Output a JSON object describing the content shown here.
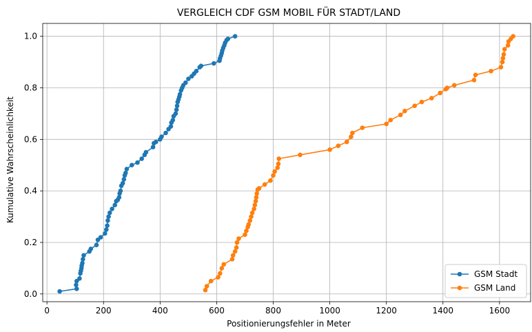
{
  "chart_data": {
    "type": "line",
    "title": "VERGLEICH CDF GSM MOBIL FÜR STADT/LAND",
    "xlabel": "Positionierungsfehler in Meter",
    "ylabel": "Kumulative Wahrscheinlichkeit",
    "xlim": [
      -15,
      1710
    ],
    "ylim": [
      -0.03,
      1.05
    ],
    "xticks": [
      0,
      200,
      400,
      600,
      800,
      1000,
      1200,
      1400,
      1600
    ],
    "yticks": [
      0.0,
      0.2,
      0.4,
      0.6,
      0.8,
      1.0
    ],
    "grid": true,
    "legend_position": "lower right",
    "series": [
      {
        "name": "GSM Stadt",
        "color": "#1f77b4",
        "marker": "circle",
        "points": [
          [
            45,
            0.01
          ],
          [
            105,
            0.02
          ],
          [
            103,
            0.035
          ],
          [
            105,
            0.05
          ],
          [
            115,
            0.06
          ],
          [
            118,
            0.08
          ],
          [
            120,
            0.09
          ],
          [
            122,
            0.1
          ],
          [
            123,
            0.11
          ],
          [
            125,
            0.12
          ],
          [
            127,
            0.135
          ],
          [
            130,
            0.15
          ],
          [
            150,
            0.165
          ],
          [
            155,
            0.175
          ],
          [
            175,
            0.19
          ],
          [
            180,
            0.21
          ],
          [
            190,
            0.22
          ],
          [
            205,
            0.235
          ],
          [
            210,
            0.25
          ],
          [
            213,
            0.265
          ],
          [
            215,
            0.285
          ],
          [
            218,
            0.3
          ],
          [
            222,
            0.315
          ],
          [
            230,
            0.33
          ],
          [
            240,
            0.345
          ],
          [
            245,
            0.36
          ],
          [
            250,
            0.365
          ],
          [
            255,
            0.375
          ],
          [
            257,
            0.39
          ],
          [
            260,
            0.4
          ],
          [
            263,
            0.42
          ],
          [
            268,
            0.43
          ],
          [
            272,
            0.445
          ],
          [
            275,
            0.46
          ],
          [
            278,
            0.47
          ],
          [
            282,
            0.485
          ],
          [
            300,
            0.5
          ],
          [
            320,
            0.51
          ],
          [
            335,
            0.525
          ],
          [
            345,
            0.54
          ],
          [
            350,
            0.55
          ],
          [
            375,
            0.57
          ],
          [
            378,
            0.585
          ],
          [
            385,
            0.59
          ],
          [
            400,
            0.6
          ],
          [
            405,
            0.61
          ],
          [
            420,
            0.625
          ],
          [
            430,
            0.64
          ],
          [
            438,
            0.65
          ],
          [
            440,
            0.665
          ],
          [
            445,
            0.675
          ],
          [
            448,
            0.69
          ],
          [
            455,
            0.7
          ],
          [
            458,
            0.715
          ],
          [
            460,
            0.73
          ],
          [
            462,
            0.745
          ],
          [
            465,
            0.755
          ],
          [
            468,
            0.765
          ],
          [
            470,
            0.775
          ],
          [
            474,
            0.79
          ],
          [
            478,
            0.8
          ],
          [
            482,
            0.81
          ],
          [
            490,
            0.82
          ],
          [
            500,
            0.835
          ],
          [
            512,
            0.845
          ],
          [
            520,
            0.855
          ],
          [
            528,
            0.865
          ],
          [
            540,
            0.88
          ],
          [
            545,
            0.885
          ],
          [
            590,
            0.895
          ],
          [
            610,
            0.905
          ],
          [
            612,
            0.915
          ],
          [
            615,
            0.925
          ],
          [
            618,
            0.935
          ],
          [
            620,
            0.945
          ],
          [
            623,
            0.955
          ],
          [
            627,
            0.965
          ],
          [
            630,
            0.975
          ],
          [
            635,
            0.985
          ],
          [
            640,
            0.99
          ],
          [
            665,
            1.0
          ]
        ]
      },
      {
        "name": "GSM Land",
        "color": "#ff7f0e",
        "marker": "circle",
        "points": [
          [
            560,
            0.015
          ],
          [
            565,
            0.03
          ],
          [
            580,
            0.05
          ],
          [
            605,
            0.065
          ],
          [
            612,
            0.08
          ],
          [
            618,
            0.1
          ],
          [
            625,
            0.115
          ],
          [
            655,
            0.135
          ],
          [
            658,
            0.15
          ],
          [
            665,
            0.165
          ],
          [
            670,
            0.18
          ],
          [
            672,
            0.2
          ],
          [
            678,
            0.215
          ],
          [
            700,
            0.23
          ],
          [
            705,
            0.245
          ],
          [
            710,
            0.26
          ],
          [
            713,
            0.27
          ],
          [
            718,
            0.285
          ],
          [
            722,
            0.3
          ],
          [
            726,
            0.315
          ],
          [
            732,
            0.33
          ],
          [
            735,
            0.345
          ],
          [
            738,
            0.36
          ],
          [
            740,
            0.375
          ],
          [
            742,
            0.39
          ],
          [
            745,
            0.405
          ],
          [
            750,
            0.41
          ],
          [
            770,
            0.425
          ],
          [
            790,
            0.44
          ],
          [
            800,
            0.46
          ],
          [
            805,
            0.475
          ],
          [
            815,
            0.49
          ],
          [
            818,
            0.505
          ],
          [
            820,
            0.525
          ],
          [
            895,
            0.54
          ],
          [
            1000,
            0.56
          ],
          [
            1030,
            0.575
          ],
          [
            1060,
            0.59
          ],
          [
            1075,
            0.61
          ],
          [
            1080,
            0.625
          ],
          [
            1115,
            0.645
          ],
          [
            1200,
            0.66
          ],
          [
            1215,
            0.675
          ],
          [
            1250,
            0.695
          ],
          [
            1265,
            0.71
          ],
          [
            1300,
            0.73
          ],
          [
            1325,
            0.745
          ],
          [
            1360,
            0.76
          ],
          [
            1390,
            0.78
          ],
          [
            1410,
            0.795
          ],
          [
            1415,
            0.8
          ],
          [
            1440,
            0.81
          ],
          [
            1510,
            0.83
          ],
          [
            1515,
            0.85
          ],
          [
            1570,
            0.865
          ],
          [
            1605,
            0.88
          ],
          [
            1610,
            0.9
          ],
          [
            1612,
            0.915
          ],
          [
            1615,
            0.93
          ],
          [
            1618,
            0.95
          ],
          [
            1630,
            0.965
          ],
          [
            1632,
            0.98
          ],
          [
            1640,
            0.99
          ],
          [
            1648,
            1.0
          ]
        ]
      }
    ]
  }
}
